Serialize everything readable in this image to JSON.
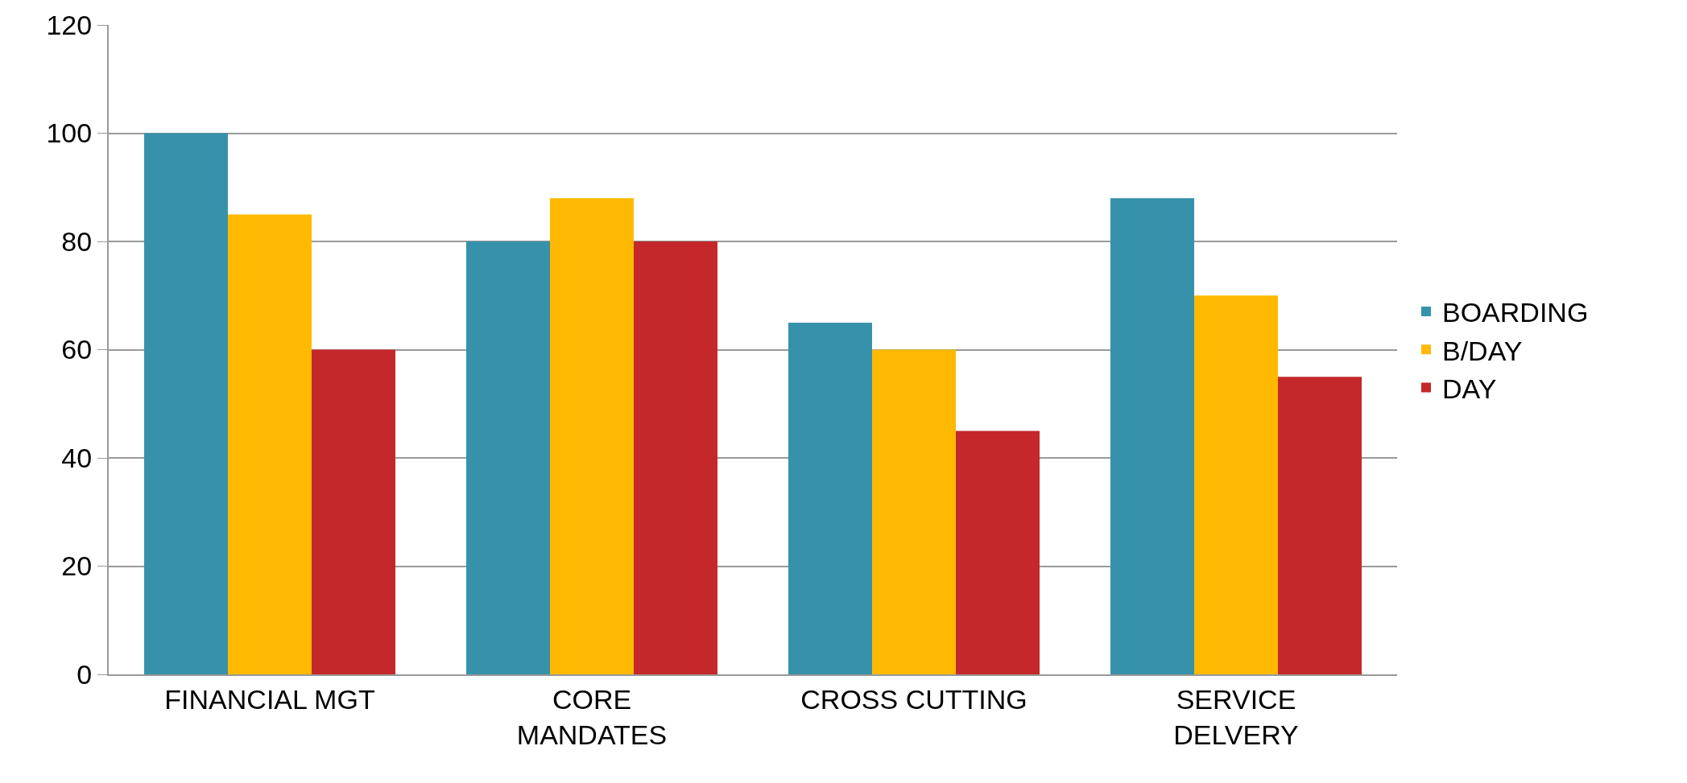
{
  "chart_data": {
    "type": "bar",
    "categories": [
      "FINANCIAL MGT",
      "CORE\nMANDATES",
      "CROSS CUTTING",
      "SERVICE\nDELVERY"
    ],
    "series": [
      {
        "name": "BOARDING",
        "color": "#3692aa",
        "values": [
          100,
          80,
          65,
          88
        ]
      },
      {
        "name": "B/DAY",
        "color": "#ffb900",
        "values": [
          85,
          88,
          60,
          70
        ]
      },
      {
        "name": "DAY",
        "color": "#c4282a",
        "values": [
          60,
          80,
          45,
          55
        ]
      }
    ],
    "ylim": [
      0,
      120
    ],
    "yticks": [
      0,
      20,
      40,
      60,
      80,
      100,
      120
    ],
    "grid": "y",
    "legend": "right"
  }
}
